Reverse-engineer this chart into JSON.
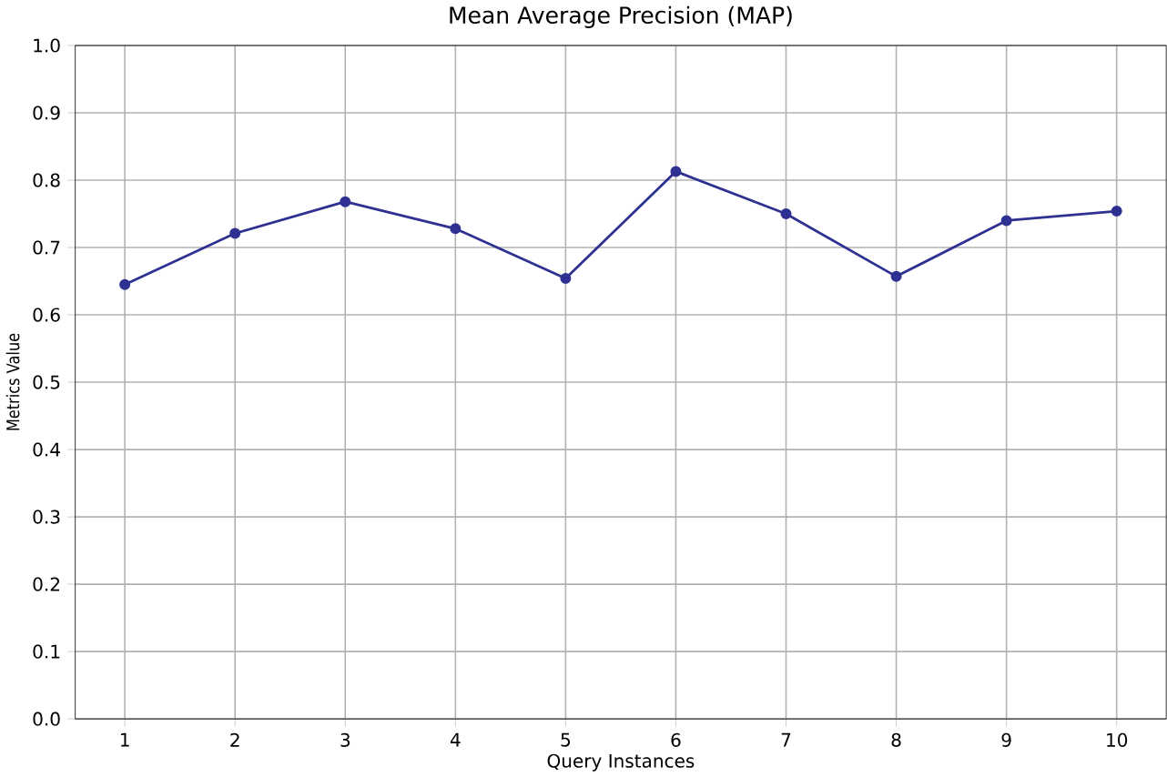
{
  "chart_data": {
    "type": "line",
    "title": "Mean Average Precision (MAP)",
    "xlabel": "Query Instances",
    "ylabel": "Metrics Value",
    "x": [
      1,
      2,
      3,
      4,
      5,
      6,
      7,
      8,
      9,
      10
    ],
    "series": [
      {
        "color": "#2e3192",
        "values": [
          0.645,
          0.721,
          0.768,
          0.728,
          0.654,
          0.813,
          0.75,
          0.657,
          0.74,
          0.754
        ]
      }
    ],
    "xlim": [
      0.55,
      10.45
    ],
    "xticks": [
      1,
      2,
      3,
      4,
      5,
      6,
      7,
      8,
      9,
      10
    ],
    "ylim": [
      0,
      1
    ],
    "yticks": [
      {
        "value": 0,
        "label": "0.0"
      },
      0.1,
      0.2,
      0.3,
      0.4,
      0.5,
      0.6,
      0.7,
      0.8,
      0.9,
      {
        "value": 1,
        "label": "1.0"
      }
    ],
    "grid": true,
    "marker": "circle",
    "line_style": "solid"
  }
}
